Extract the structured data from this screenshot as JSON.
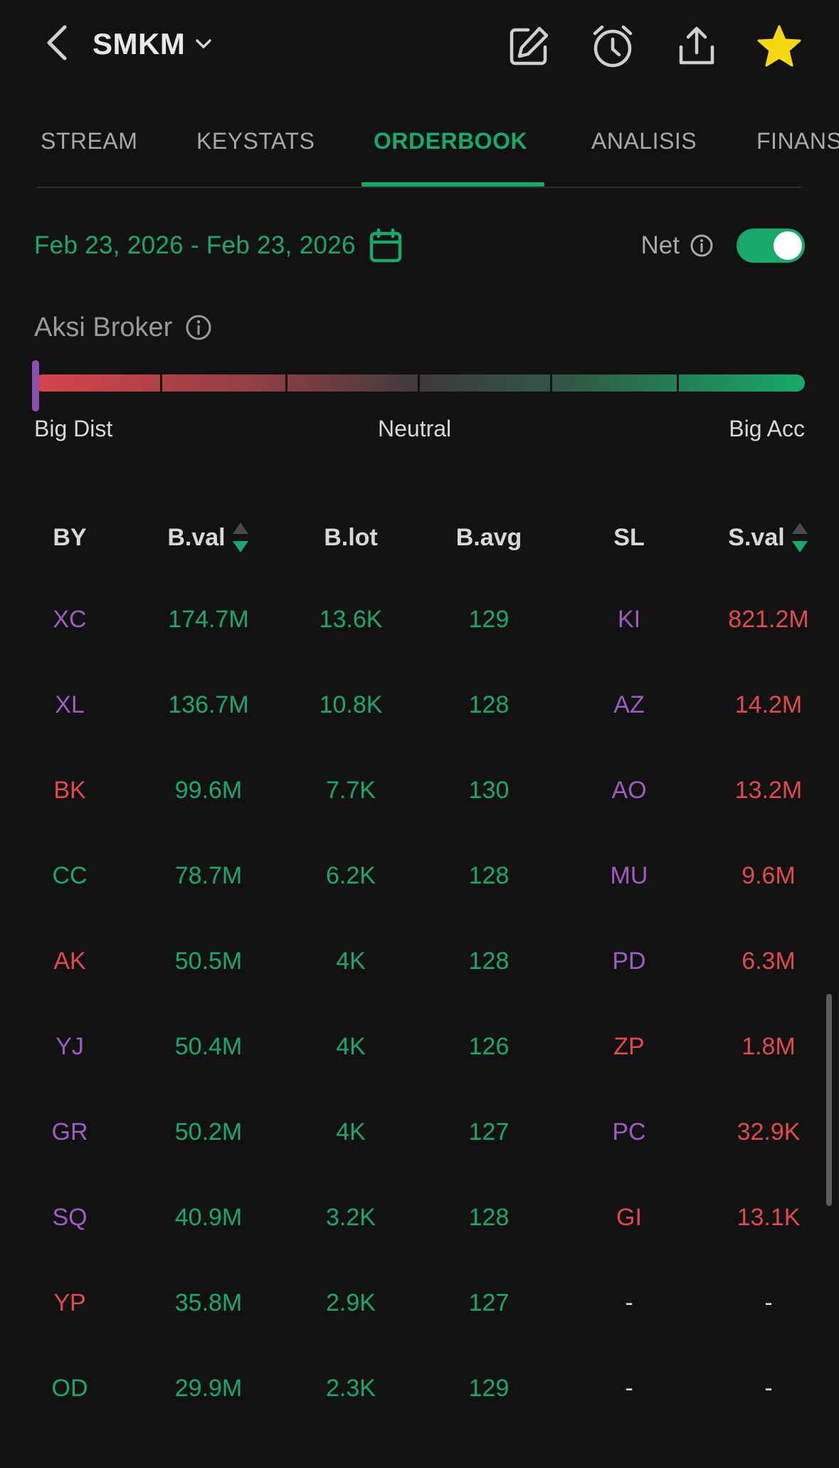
{
  "header": {
    "ticker": "SMKM",
    "icons": [
      "back-arrow-icon",
      "chevron-down-icon",
      "edit-icon",
      "alarm-icon",
      "share-icon",
      "star-icon"
    ],
    "star_color": "#f5d90f"
  },
  "tabs": [
    {
      "label": "STREAM"
    },
    {
      "label": "KEYSTATS"
    },
    {
      "label": "ORDERBOOK",
      "active": true
    },
    {
      "label": "ANALISIS"
    },
    {
      "label": "FINANS"
    }
  ],
  "date_range": "Feb 23, 2026 - Feb 23, 2026",
  "net": {
    "label": "Net",
    "enabled": true
  },
  "aksi_broker": {
    "title": "Aksi Broker",
    "labels": {
      "left": "Big Dist",
      "center": "Neutral",
      "right": "Big Acc"
    },
    "level_fraction": 0.0
  },
  "table": {
    "headers": {
      "by": "BY",
      "bval": "B.val",
      "blot": "B.lot",
      "bavg": "B.avg",
      "sl": "SL",
      "sval": "S.val"
    },
    "rows": [
      {
        "by": "XC",
        "by_color": "purple",
        "bval": "174.7M",
        "blot": "13.6K",
        "bavg": "129",
        "sl": "KI",
        "sl_color": "purple",
        "sval": "821.2M"
      },
      {
        "by": "XL",
        "by_color": "purple",
        "bval": "136.7M",
        "blot": "10.8K",
        "bavg": "128",
        "sl": "AZ",
        "sl_color": "purple",
        "sval": "14.2M"
      },
      {
        "by": "BK",
        "by_color": "red",
        "bval": "99.6M",
        "blot": "7.7K",
        "bavg": "130",
        "sl": "AO",
        "sl_color": "purple",
        "sval": "13.2M"
      },
      {
        "by": "CC",
        "by_color": "green",
        "bval": "78.7M",
        "blot": "6.2K",
        "bavg": "128",
        "sl": "MU",
        "sl_color": "purple",
        "sval": "9.6M"
      },
      {
        "by": "AK",
        "by_color": "red",
        "bval": "50.5M",
        "blot": "4K",
        "bavg": "128",
        "sl": "PD",
        "sl_color": "purple",
        "sval": "6.3M"
      },
      {
        "by": "YJ",
        "by_color": "purple",
        "bval": "50.4M",
        "blot": "4K",
        "bavg": "126",
        "sl": "ZP",
        "sl_color": "red",
        "sval": "1.8M"
      },
      {
        "by": "GR",
        "by_color": "purple",
        "bval": "50.2M",
        "blot": "4K",
        "bavg": "127",
        "sl": "PC",
        "sl_color": "purple",
        "sval": "32.9K"
      },
      {
        "by": "SQ",
        "by_color": "purple",
        "bval": "40.9M",
        "blot": "3.2K",
        "bavg": "128",
        "sl": "GI",
        "sl_color": "red",
        "sval": "13.1K"
      },
      {
        "by": "YP",
        "by_color": "red",
        "bval": "35.8M",
        "blot": "2.9K",
        "bavg": "127",
        "sl": "-",
        "sl_color": "grey",
        "sval": "-"
      },
      {
        "by": "OD",
        "by_color": "green",
        "bval": "29.9M",
        "blot": "2.3K",
        "bavg": "129",
        "sl": "-",
        "sl_color": "grey",
        "sval": "-"
      }
    ]
  },
  "colors": {
    "background": "#121212",
    "accent_green": "#17a96a",
    "sell_red": "#e0494d",
    "broker_purple": "#9d5cc0"
  }
}
